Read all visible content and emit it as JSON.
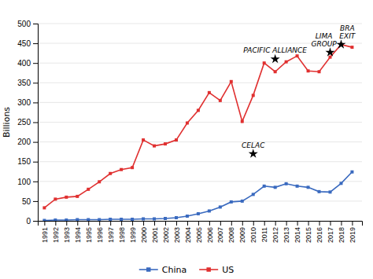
{
  "chart_data": {
    "type": "line",
    "ylabel": "Billions",
    "x": [
      1991,
      1992,
      1993,
      1994,
      1995,
      1996,
      1997,
      1998,
      1999,
      2000,
      2001,
      2002,
      2003,
      2004,
      2005,
      2006,
      2007,
      2008,
      2009,
      2010,
      2011,
      2012,
      2013,
      2014,
      2015,
      2016,
      2017,
      2018,
      2019
    ],
    "series": [
      {
        "name": "China",
        "color": "#3a6abf",
        "values": [
          1,
          2,
          2,
          3,
          3,
          3,
          4,
          4,
          4,
          5,
          5,
          6,
          8,
          12,
          18,
          25,
          35,
          48,
          50,
          67,
          88,
          85,
          94,
          88,
          85,
          74,
          73,
          95,
          124
        ]
      },
      {
        "name": "US",
        "color": "#e03030",
        "values": [
          33,
          55,
          60,
          62,
          80,
          99,
          120,
          130,
          135,
          205,
          190,
          195,
          205,
          248,
          280,
          325,
          305,
          353,
          252,
          318,
          400,
          378,
          403,
          418,
          380,
          378,
          415,
          447,
          440
        ]
      }
    ],
    "marker": "square",
    "xlim": [
      1990.4,
      2019.9
    ],
    "xticks": [
      1991,
      1992,
      1993,
      1994,
      1995,
      1996,
      1997,
      1998,
      1999,
      2000,
      2001,
      2002,
      2003,
      2004,
      2005,
      2006,
      2007,
      2008,
      2009,
      2010,
      2011,
      2012,
      2013,
      2014,
      2015,
      2016,
      2017,
      2018,
      2019
    ],
    "ylim": [
      0,
      500
    ],
    "yticks": [
      0,
      50,
      100,
      150,
      200,
      250,
      300,
      350,
      400,
      450,
      500
    ],
    "grid": true,
    "legend": "bottom",
    "annotations": [
      {
        "text": "CELAC",
        "x": 2010,
        "y": 170
      },
      {
        "text": "PACIFIC ALLIANCE",
        "x": 2012,
        "y": 410
      },
      {
        "text": "LIMA\nGROUP",
        "x": 2017,
        "y": 427
      },
      {
        "text": "BRA\nEXIT",
        "x": 2018,
        "y": 447
      }
    ]
  }
}
